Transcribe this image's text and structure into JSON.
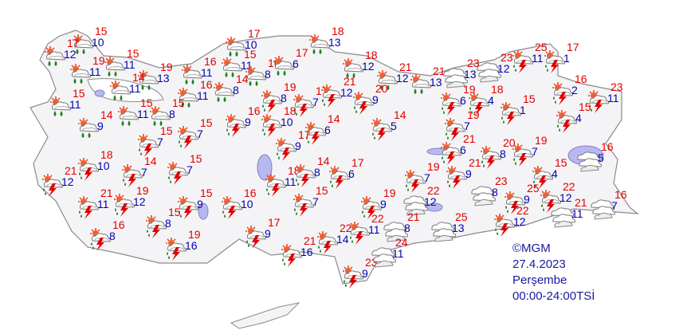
{
  "credit": "©MGM",
  "date": "27.4.2023",
  "weekday": "Perşembe",
  "time_range": "00:00-24:00TSİ",
  "colors": {
    "max_temp": "#e00000",
    "min_temp": "#0000b0",
    "land": "#f4f4f6",
    "water": "#b8b8f0"
  },
  "icon_types": {
    "r": "partly-cloudy-rain-icon",
    "t": "partly-cloudy-thunderstorm-icon",
    "c": "cloudy-icon"
  },
  "stations": [
    {
      "hi": "15",
      "lo": "10",
      "icon": "r"
    },
    {
      "hi": "17",
      "lo": "12",
      "icon": "r"
    },
    {
      "hi": "19",
      "lo": "11",
      "icon": "r"
    },
    {
      "hi": "15",
      "lo": "11",
      "icon": "r"
    },
    {
      "hi": "19",
      "lo": "13",
      "icon": "r"
    },
    {
      "hi": "16",
      "lo": "11",
      "icon": "r"
    },
    {
      "hi": "15",
      "lo": "11",
      "icon": "r"
    },
    {
      "hi": "16",
      "lo": "8",
      "icon": "r"
    },
    {
      "hi": "17",
      "lo": "10",
      "icon": "r"
    },
    {
      "hi": "17",
      "lo": "6",
      "icon": "r"
    },
    {
      "hi": "18",
      "lo": "13",
      "icon": "r"
    },
    {
      "hi": "18",
      "lo": "12",
      "icon": "r"
    },
    {
      "hi": "21",
      "lo": "12",
      "icon": "r"
    },
    {
      "hi": "21",
      "lo": "13",
      "icon": "r"
    },
    {
      "hi": "14",
      "lo": "11",
      "icon": "r"
    },
    {
      "hi": "16",
      "lo": "11",
      "icon": "r"
    },
    {
      "hi": "14",
      "lo": "8",
      "icon": "r"
    },
    {
      "hi": "15",
      "lo": "11",
      "icon": "r"
    },
    {
      "hi": "15",
      "lo": "11",
      "icon": "r"
    },
    {
      "hi": "15",
      "lo": "8",
      "icon": "r"
    },
    {
      "hi": "14",
      "lo": "9",
      "icon": "r"
    },
    {
      "hi": "19",
      "lo": "8",
      "icon": "t"
    },
    {
      "hi": "17",
      "lo": "7",
      "icon": "t"
    },
    {
      "hi": "21",
      "lo": "12",
      "icon": "t"
    },
    {
      "hi": "20",
      "lo": "9",
      "icon": "t"
    },
    {
      "hi": "16",
      "lo": "9",
      "icon": "t"
    },
    {
      "hi": "18",
      "lo": "10",
      "icon": "t"
    },
    {
      "hi": "14",
      "lo": "6",
      "icon": "t"
    },
    {
      "hi": "14",
      "lo": "5",
      "icon": "t"
    },
    {
      "hi": "17",
      "lo": "9",
      "icon": "t"
    },
    {
      "hi": "15",
      "lo": "7",
      "icon": "t"
    },
    {
      "hi": "15",
      "lo": "7",
      "icon": "t"
    },
    {
      "hi": "18",
      "lo": "10",
      "icon": "t"
    },
    {
      "hi": "14",
      "lo": "7",
      "icon": "t"
    },
    {
      "hi": "15",
      "lo": "7",
      "icon": "t"
    },
    {
      "hi": "21",
      "lo": "12",
      "icon": "t"
    },
    {
      "hi": "21",
      "lo": "11",
      "icon": "t"
    },
    {
      "hi": "19",
      "lo": "12",
      "icon": "t"
    },
    {
      "hi": "15",
      "lo": "9",
      "icon": "t"
    },
    {
      "hi": "15",
      "lo": "8",
      "icon": "t"
    },
    {
      "hi": "16",
      "lo": "8",
      "icon": "t"
    },
    {
      "hi": "19",
      "lo": "16",
      "icon": "t"
    },
    {
      "hi": "16",
      "lo": "10",
      "icon": "t"
    },
    {
      "hi": "18",
      "lo": "11",
      "icon": "t"
    },
    {
      "hi": "14",
      "lo": "8",
      "icon": "t"
    },
    {
      "hi": "17",
      "lo": "6",
      "icon": "t"
    },
    {
      "hi": "15",
      "lo": "7",
      "icon": "t"
    },
    {
      "hi": "17",
      "lo": "9",
      "icon": "t"
    },
    {
      "hi": "21",
      "lo": "16",
      "icon": "t"
    },
    {
      "hi": "22",
      "lo": "14",
      "icon": "t"
    },
    {
      "hi": "23",
      "lo": "9",
      "icon": "t"
    },
    {
      "hi": "22",
      "lo": "11",
      "icon": "t"
    },
    {
      "hi": "19",
      "lo": "9",
      "icon": "t"
    },
    {
      "hi": "19",
      "lo": "6",
      "icon": "t"
    },
    {
      "hi": "18",
      "lo": "4",
      "icon": "t"
    },
    {
      "hi": "19",
      "lo": "7",
      "icon": "t"
    },
    {
      "hi": "21",
      "lo": "6",
      "icon": "t"
    },
    {
      "hi": "19",
      "lo": "7",
      "icon": "t"
    },
    {
      "hi": "21",
      "lo": "9",
      "icon": "t"
    },
    {
      "hi": "20",
      "lo": "8",
      "icon": "t"
    },
    {
      "hi": "19",
      "lo": "7",
      "icon": "t"
    },
    {
      "hi": "15",
      "lo": "4",
      "icon": "t"
    },
    {
      "hi": "25",
      "lo": "9",
      "icon": "t"
    },
    {
      "hi": "22",
      "lo": "12",
      "icon": "t"
    },
    {
      "hi": "22",
      "lo": "12",
      "icon": "t"
    },
    {
      "hi": "15",
      "lo": "1",
      "icon": "t"
    },
    {
      "hi": "25",
      "lo": "11",
      "icon": "t"
    },
    {
      "hi": "17",
      "lo": "1",
      "icon": "t"
    },
    {
      "hi": "16",
      "lo": "2",
      "icon": "t"
    },
    {
      "hi": "23",
      "lo": "11",
      "icon": "t"
    },
    {
      "hi": "15",
      "lo": "4",
      "icon": "t"
    },
    {
      "hi": "23",
      "lo": "13",
      "icon": "c"
    },
    {
      "hi": "23",
      "lo": "12",
      "icon": "c"
    },
    {
      "hi": "16",
      "lo": "5",
      "icon": "c"
    },
    {
      "hi": "22",
      "lo": "12",
      "icon": "c"
    },
    {
      "hi": "23",
      "lo": "8",
      "icon": "c"
    },
    {
      "hi": "21",
      "lo": "8",
      "icon": "c"
    },
    {
      "hi": "25",
      "lo": "13",
      "icon": "c"
    },
    {
      "hi": "24",
      "lo": "11",
      "icon": "c"
    },
    {
      "hi": "21",
      "lo": "11",
      "icon": "c"
    },
    {
      "hi": "16",
      "lo": "7",
      "icon": "c"
    }
  ]
}
